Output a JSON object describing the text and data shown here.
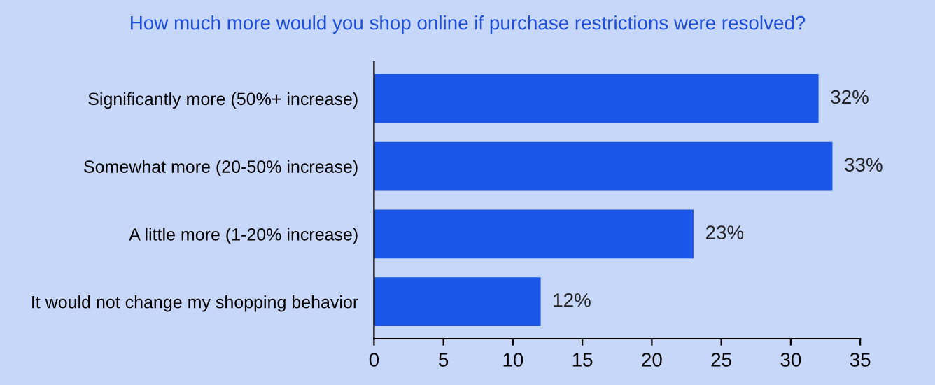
{
  "chart_data": {
    "type": "bar",
    "orientation": "horizontal",
    "title": "How much more would you shop online if purchase restrictions were resolved?",
    "categories": [
      "Significantly more (50%+ increase)",
      "Somewhat more (20-50% increase)",
      "A little more (1-20% increase)",
      "It would not change my shopping behavior"
    ],
    "values": [
      32,
      33,
      23,
      12
    ],
    "value_labels": [
      "32%",
      "33%",
      "23%",
      "12%"
    ],
    "color": "#1a56e8",
    "xlim": [
      0,
      35
    ],
    "xticks": [
      0,
      5,
      10,
      15,
      20,
      25,
      30,
      35
    ],
    "grid": false,
    "legend": false
  }
}
